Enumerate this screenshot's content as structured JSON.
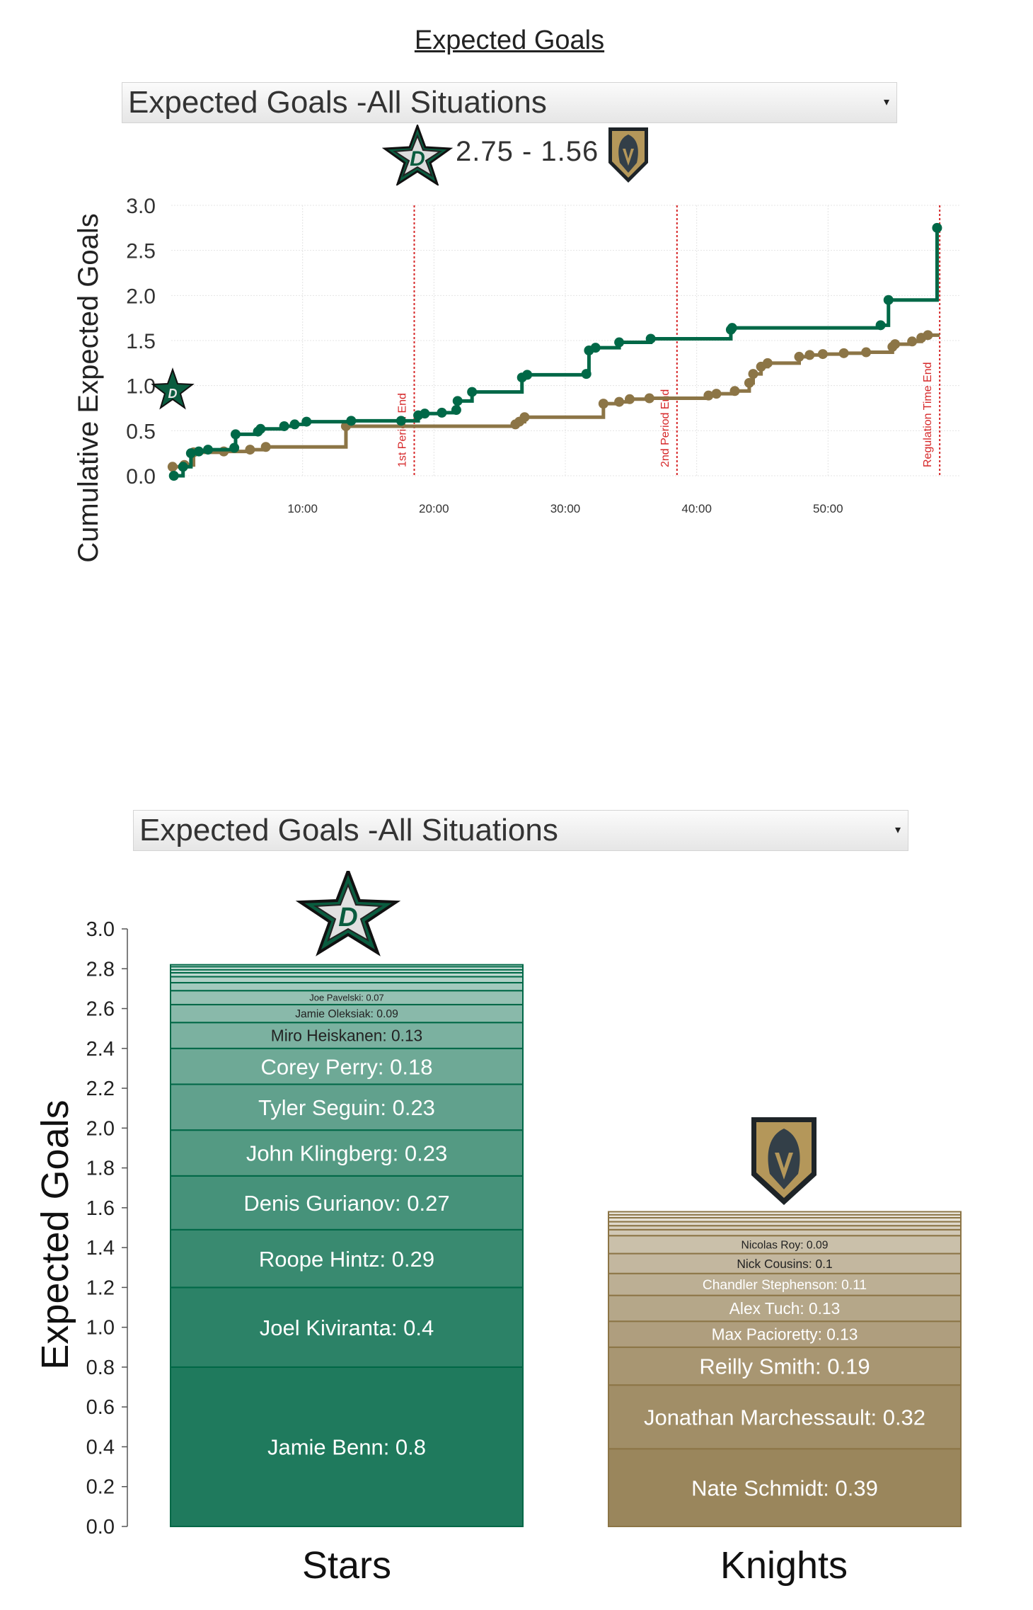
{
  "page_title": "Expected Goals",
  "colors": {
    "stars": "#006847",
    "knights": "#8c7546",
    "period_line": "#d62728"
  },
  "icons": {
    "stars_logo": "stars-logo-icon",
    "knights_logo": "knights-logo-icon",
    "dropdown_caret": "caret-down-icon"
  },
  "line_section": {
    "dropdown": {
      "selected": "Expected Goals -All Situations",
      "caret": "▾"
    },
    "score": "2.75 - 1.56"
  },
  "bar_section": {
    "dropdown": {
      "selected": "Expected Goals -All Situations",
      "caret": "▾"
    }
  },
  "chart_data": [
    {
      "type": "line",
      "ylabel": "Cumulative Expected Goals",
      "xlabel": "",
      "ylim": [
        0,
        3.0
      ],
      "xlim": [
        0,
        60
      ],
      "yticks": [
        "0.0",
        "0.5",
        "1.0",
        "1.5",
        "2.0",
        "2.5",
        "3.0"
      ],
      "xticks": [
        {
          "v": 10,
          "label": "10:00"
        },
        {
          "v": 20,
          "label": "20:00"
        },
        {
          "v": 30,
          "label": "30:00"
        },
        {
          "v": 40,
          "label": "40:00"
        },
        {
          "v": 50,
          "label": "50:00"
        }
      ],
      "grid": true,
      "period_markers": [
        {
          "x": 18.5,
          "label": "1st Period End"
        },
        {
          "x": 38.5,
          "label": "2nd Period End"
        },
        {
          "x": 58.5,
          "label": "Regulation Time End"
        }
      ],
      "series": [
        {
          "team": "stars",
          "x": [
            0.2,
            0.9,
            1.5,
            2.1,
            2.8,
            4.8,
            4.9,
            6.6,
            6.8,
            8.6,
            9.4,
            10.3,
            13.7,
            17.5,
            18.8,
            19.3,
            20.6,
            21.7,
            21.8,
            22.9,
            26.7,
            27.1,
            31.6,
            31.8,
            32.3,
            34.1,
            36.5,
            42.6,
            42.7,
            54.0,
            54.6,
            58.3
          ],
          "y": [
            0.0,
            0.1,
            0.25,
            0.27,
            0.29,
            0.31,
            0.46,
            0.49,
            0.52,
            0.55,
            0.57,
            0.6,
            0.61,
            0.61,
            0.67,
            0.69,
            0.7,
            0.73,
            0.83,
            0.93,
            1.09,
            1.12,
            1.13,
            1.39,
            1.42,
            1.48,
            1.52,
            1.62,
            1.64,
            1.67,
            1.95,
            2.75
          ]
        },
        {
          "team": "knights",
          "x": [
            0.1,
            1.0,
            1.7,
            4.0,
            6.0,
            7.2,
            13.3,
            26.2,
            26.5,
            26.9,
            32.9,
            34.1,
            34.9,
            36.4,
            40.9,
            41.5,
            42.9,
            44.0,
            44.3,
            44.9,
            45.4,
            47.8,
            48.6,
            49.6,
            51.2,
            52.9,
            54.9,
            55.1,
            56.4,
            57.1,
            57.6
          ],
          "y": [
            0.1,
            0.12,
            0.26,
            0.27,
            0.29,
            0.32,
            0.55,
            0.57,
            0.6,
            0.65,
            0.8,
            0.82,
            0.85,
            0.86,
            0.89,
            0.91,
            0.94,
            1.03,
            1.13,
            1.21,
            1.25,
            1.32,
            1.34,
            1.35,
            1.36,
            1.37,
            1.43,
            1.46,
            1.49,
            1.53,
            1.56
          ]
        }
      ]
    },
    {
      "type": "bar",
      "stacked": true,
      "ylabel": "Expected Goals",
      "xlabel": "",
      "ylim": [
        0,
        3.0
      ],
      "yticks": [
        "0.0",
        "0.2",
        "0.4",
        "0.6",
        "0.8",
        "1.0",
        "1.2",
        "1.4",
        "1.6",
        "1.8",
        "2.0",
        "2.2",
        "2.4",
        "2.6",
        "2.8",
        "3.0"
      ],
      "categories": [
        "Stars",
        "Knights"
      ],
      "stacks": [
        {
          "team": "stars",
          "total": 2.82,
          "segments": [
            {
              "label": "Jamie Benn: 0.8",
              "value": 0.8
            },
            {
              "label": "Joel Kiviranta: 0.4",
              "value": 0.4
            },
            {
              "label": "Roope Hintz: 0.29",
              "value": 0.29
            },
            {
              "label": "Denis Gurianov: 0.27",
              "value": 0.27
            },
            {
              "label": "John Klingberg: 0.23",
              "value": 0.23
            },
            {
              "label": "Tyler Seguin: 0.23",
              "value": 0.23
            },
            {
              "label": "Corey Perry: 0.18",
              "value": 0.18
            },
            {
              "label": "Miro Heiskanen: 0.13",
              "value": 0.13
            },
            {
              "label": "Jamie Oleksiak: 0.09",
              "value": 0.09
            },
            {
              "label": "Joe Pavelski: 0.07",
              "value": 0.07
            },
            {
              "label": "",
              "value": 0.04
            },
            {
              "label": "",
              "value": 0.03
            },
            {
              "label": "",
              "value": 0.02
            },
            {
              "label": "",
              "value": 0.015
            },
            {
              "label": "",
              "value": 0.015
            },
            {
              "label": "",
              "value": 0.01
            }
          ]
        },
        {
          "team": "knights",
          "total": 1.58,
          "segments": [
            {
              "label": "Nate Schmidt: 0.39",
              "value": 0.39
            },
            {
              "label": "Jonathan Marchessault: 0.32",
              "value": 0.32
            },
            {
              "label": "Reilly Smith: 0.19",
              "value": 0.19
            },
            {
              "label": "Max Pacioretty: 0.13",
              "value": 0.13
            },
            {
              "label": "Alex Tuch: 0.13",
              "value": 0.13
            },
            {
              "label": "Chandler Stephenson: 0.11",
              "value": 0.11
            },
            {
              "label": "Nick Cousins: 0.1",
              "value": 0.1
            },
            {
              "label": "Nicolas Roy: 0.09",
              "value": 0.09
            },
            {
              "label": "",
              "value": 0.03
            },
            {
              "label": "",
              "value": 0.02
            },
            {
              "label": "",
              "value": 0.02
            },
            {
              "label": "",
              "value": 0.02
            },
            {
              "label": "",
              "value": 0.015
            },
            {
              "label": "",
              "value": 0.015
            }
          ]
        }
      ]
    }
  ]
}
